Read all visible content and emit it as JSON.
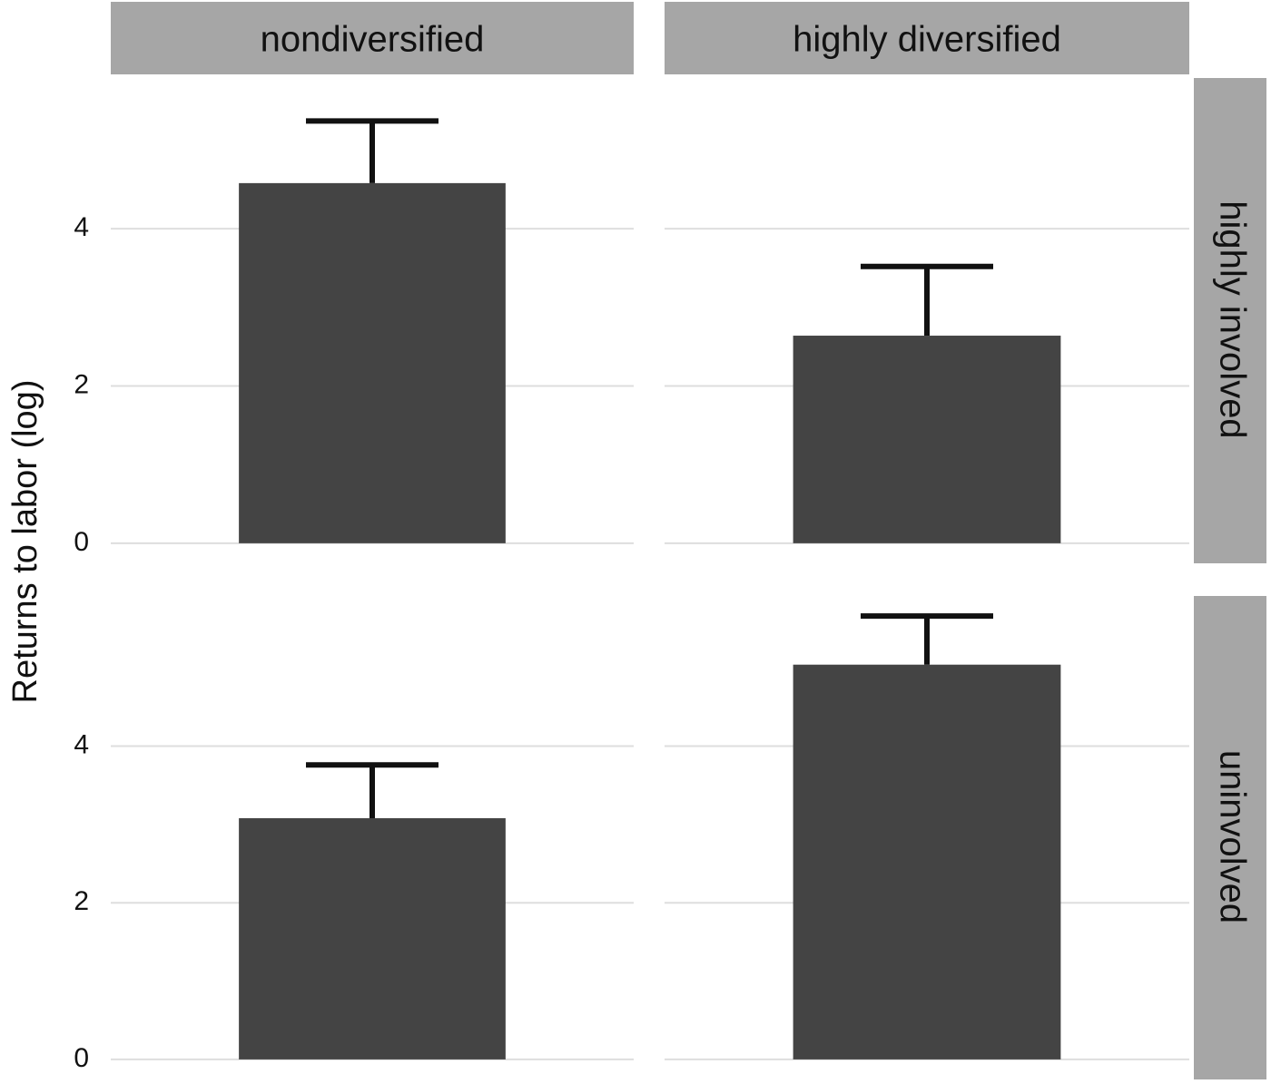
{
  "chart_data": {
    "type": "bar",
    "ylabel": "Returns to labor (log)",
    "columns": [
      "nondiversified",
      "highly diversified"
    ],
    "rows": [
      "highly involved",
      "uninvolved"
    ],
    "values": [
      [
        4.58,
        2.64
      ],
      [
        3.08,
        5.04
      ]
    ],
    "errors": [
      [
        0.79,
        0.88
      ],
      [
        0.68,
        0.62
      ]
    ],
    "color": "#444444",
    "ylim": [
      -0.14,
      5.94
    ],
    "yticks": [
      0,
      2,
      4
    ],
    "grid": true
  }
}
